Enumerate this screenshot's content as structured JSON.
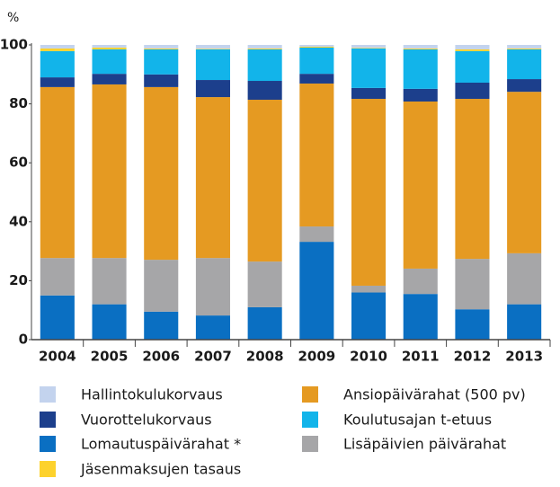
{
  "chart_data": {
    "type": "stacked_bar",
    "y_label": "%",
    "categories": [
      "2004",
      "2005",
      "2006",
      "2007",
      "2008",
      "2009",
      "2010",
      "2011",
      "2012",
      "2013"
    ],
    "series": [
      {
        "name": "Lomautuspäivärahat *",
        "color": "#0a6fc2",
        "values": [
          15,
          12,
          9.5,
          8.2,
          11,
          33.2,
          16,
          15.5,
          10.3,
          12
        ]
      },
      {
        "name": "Lisäpäivien päivärahat",
        "color": "#a6a6a8",
        "values": [
          12.7,
          15.7,
          17.6,
          19.5,
          15.5,
          5.2,
          2.3,
          8.6,
          17.1,
          17.3
        ]
      },
      {
        "name": "Ansiopäivärahat (500 pv)",
        "color": "#e59a22",
        "values": [
          58,
          58.9,
          58.6,
          54.6,
          54.9,
          48.5,
          63.4,
          56.7,
          54.3,
          54.8
        ]
      },
      {
        "name": "Vuorottelukorvaus",
        "color": "#1c3f8c",
        "values": [
          3.3,
          3.6,
          4.3,
          5.8,
          6.4,
          3.3,
          3.7,
          4.3,
          5.5,
          4.3
        ]
      },
      {
        "name": "Koulutusajan t-etuus",
        "color": "#12b4ea",
        "values": [
          8.9,
          8.3,
          8.5,
          10.4,
          10.7,
          8.9,
          13.4,
          13.4,
          10.7,
          10.1
        ]
      },
      {
        "name": "Jäsenmaksujen tasaus",
        "color": "#fdd22d",
        "values": [
          0.9,
          0.6,
          0.3,
          0.2,
          0.3,
          0.3,
          0.2,
          0.3,
          0.6,
          0.3
        ]
      },
      {
        "name": "Hallintokulukorvaus",
        "color": "#c3d3ee",
        "values": [
          1.2,
          0.9,
          1.2,
          1.3,
          1.2,
          0.6,
          1.0,
          1.2,
          1.5,
          1.2
        ]
      }
    ],
    "ylim": [
      0,
      100
    ],
    "yticks": [
      0,
      20,
      40,
      60,
      80,
      100
    ],
    "grid": false
  }
}
